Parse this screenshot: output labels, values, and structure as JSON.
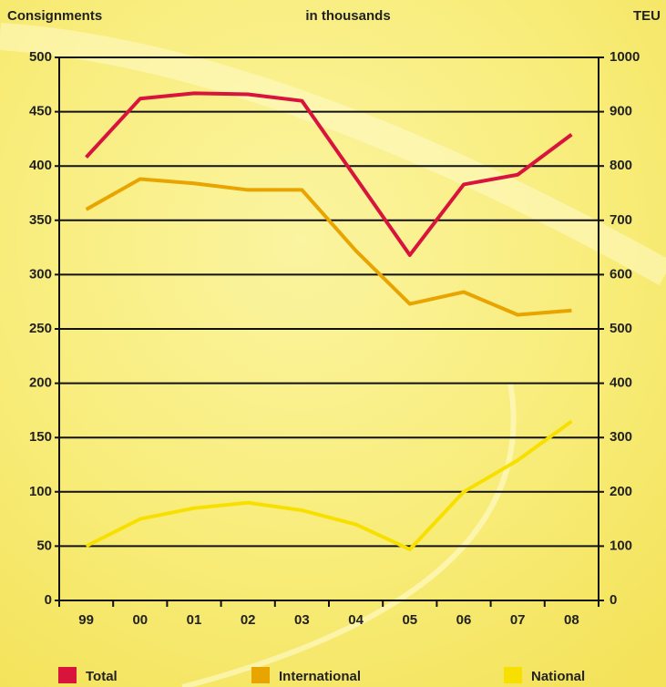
{
  "chart_data": {
    "type": "line",
    "y_label": "Consignments",
    "subtitle": "in thousands",
    "y2_label": "TEU",
    "categories": [
      "99",
      "00",
      "01",
      "02",
      "03",
      "04",
      "05",
      "06",
      "07",
      "08"
    ],
    "series": [
      {
        "name": "Total",
        "color": "#d8143c",
        "values": [
          408,
          462,
          467,
          466,
          460,
          389,
          318,
          383,
          392,
          429
        ]
      },
      {
        "name": "International",
        "color": "#e8a400",
        "values": [
          360,
          388,
          384,
          378,
          378,
          322,
          273,
          284,
          263,
          267
        ]
      },
      {
        "name": "National",
        "color": "#f7e000",
        "values": [
          50,
          75,
          85,
          90,
          83,
          70,
          47,
          100,
          129,
          165
        ]
      }
    ],
    "ylim": [
      0,
      500
    ],
    "yticks": [
      0,
      50,
      100,
      150,
      200,
      250,
      300,
      350,
      400,
      450,
      500
    ],
    "y2lim": [
      0,
      1000
    ],
    "y2ticks": [
      0,
      100,
      200,
      300,
      400,
      500,
      600,
      700,
      800,
      900,
      1000
    ],
    "grid": true,
    "legend": "bottom"
  }
}
